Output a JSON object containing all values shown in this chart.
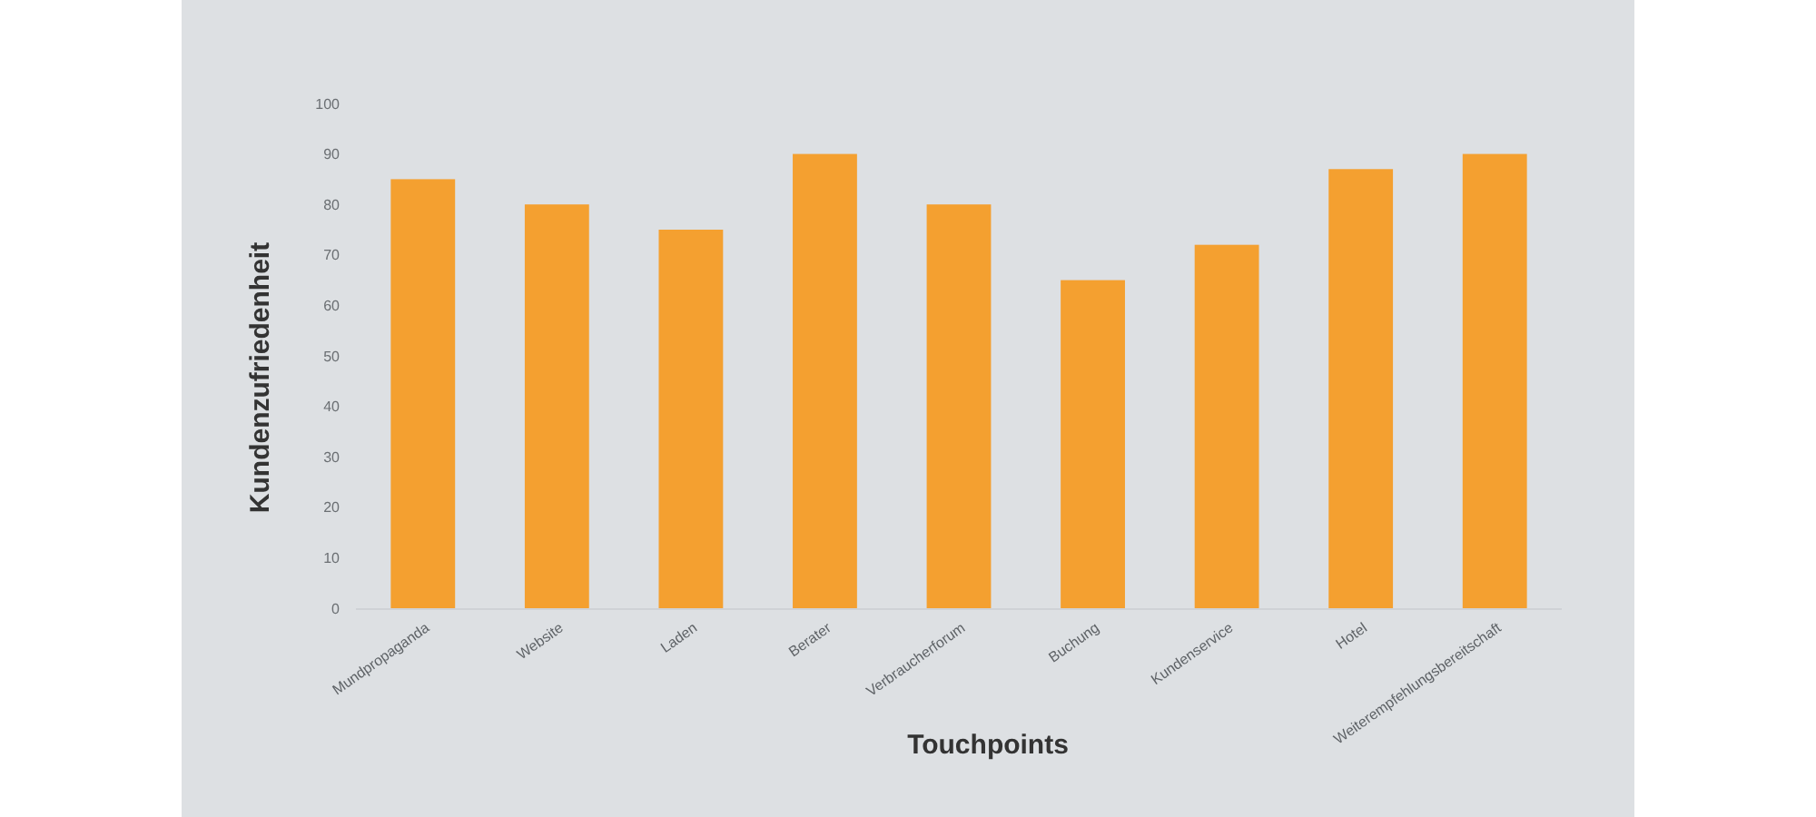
{
  "chart_data": {
    "type": "bar",
    "xlabel": "Touchpoints",
    "ylabel": "Kundenzufriedenheit",
    "categories": [
      "Mundpropaganda",
      "Website",
      "Laden",
      "Berater",
      "Verbraucherforum",
      "Buchung",
      "Kundenservice",
      "Hotel",
      "Weiterempfehlungsbereitschaft"
    ],
    "values": [
      85,
      80,
      75,
      90,
      80,
      65,
      72,
      87,
      90
    ],
    "color": "#f4a030",
    "ylim": [
      0,
      100
    ],
    "yticks": [
      0,
      10,
      20,
      30,
      40,
      50,
      60,
      70,
      80,
      90,
      100
    ],
    "grid": false
  }
}
